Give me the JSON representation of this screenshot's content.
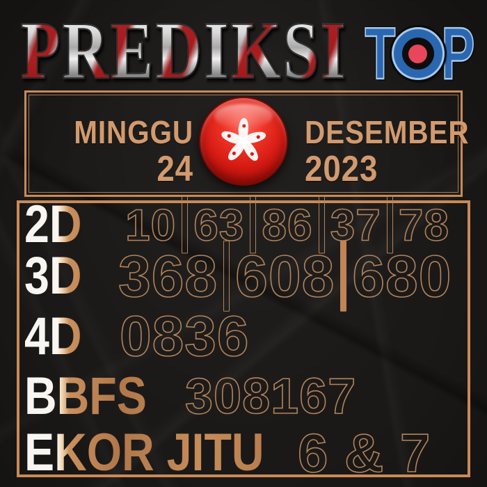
{
  "poster": {
    "title": "PREDIKSI",
    "brand": "TOP"
  },
  "brand": {
    "letter_t": "T",
    "letter_p": "P",
    "target_icon": "target-icon"
  },
  "date_box": {
    "day_name": "MINGGU",
    "day_number": "24",
    "month": "DESEMBER",
    "year": "2023",
    "flag_icon": "hong-kong-flag-icon"
  },
  "predictions": {
    "separator_glyph": "|",
    "rows": [
      {
        "id": "2d",
        "label": "2D",
        "values": [
          "10",
          "63",
          "86",
          "37",
          "78"
        ]
      },
      {
        "id": "3d",
        "label": "3D",
        "values": [
          "368",
          "608",
          "680"
        ],
        "filled_separator_after": 1
      },
      {
        "id": "4d",
        "label": "4D",
        "values": [
          "0836"
        ]
      },
      {
        "id": "bbfs",
        "label": "BBFS",
        "values": [
          "308167"
        ]
      },
      {
        "id": "ekor",
        "label": "EKOR JITU",
        "values": [
          "6 & 7"
        ]
      }
    ]
  },
  "colors": {
    "background": "#1b1918",
    "copper_border": "#c98a57",
    "copper_text": "#d29a6e",
    "number_outline": "#b3845a",
    "label_white": "#f9f6f2",
    "badge_red": "#d61c14",
    "logo_blue": "#2b67b1",
    "logo_light_outline": "#a6c9ea",
    "target_red": "#e8465a",
    "title_red": "#a51416",
    "title_silver": "#d8d8d8"
  }
}
